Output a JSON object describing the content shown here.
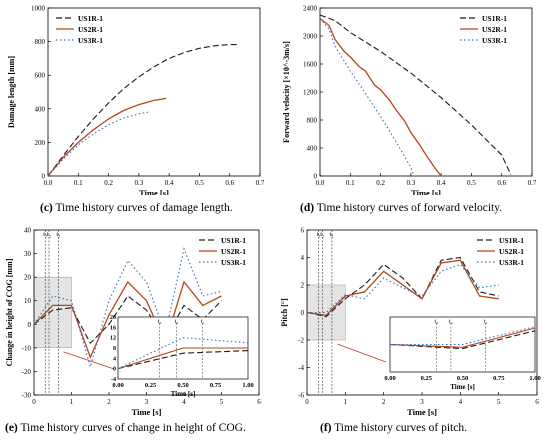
{
  "colors": {
    "US1R-1": "#1a1a1a",
    "US2R-1": "#b5451c",
    "US3R-1": "#2f6fbf",
    "shade": "#d8d8d8"
  },
  "captions": {
    "c": {
      "tag": "(c)",
      "text": "Time history curves of damage length."
    },
    "d": {
      "tag": "(d)",
      "text": "Time history curves of forward velocity."
    },
    "e": {
      "tag": "(e)",
      "text": "Time history curves of change in height of COG."
    },
    "f": {
      "tag": "(f)",
      "text": "Time history curves of pitch."
    }
  },
  "chart_data": [
    {
      "id": "c",
      "type": "line",
      "xlabel": "Time [s]",
      "ylabel": "Damage length [mm]",
      "xlim": [
        0,
        0.7
      ],
      "ylim": [
        0,
        1000
      ],
      "xticks": [
        "0.0",
        "0.1",
        "0.2",
        "0.3",
        "0.4",
        "0.5",
        "0.6",
        "0.7"
      ],
      "yticks": [
        "0",
        "200",
        "400",
        "600",
        "800",
        "1000"
      ],
      "legend": "top-left",
      "series": [
        {
          "name": "US1R-1",
          "style": "dash",
          "x": [
            0,
            0.05,
            0.1,
            0.15,
            0.2,
            0.25,
            0.3,
            0.35,
            0.4,
            0.45,
            0.5,
            0.55,
            0.6,
            0.63
          ],
          "y": [
            0,
            120,
            235,
            340,
            435,
            520,
            590,
            650,
            700,
            735,
            760,
            775,
            782,
            782
          ]
        },
        {
          "name": "US2R-1",
          "style": "solid",
          "x": [
            0,
            0.05,
            0.1,
            0.15,
            0.2,
            0.25,
            0.3,
            0.35,
            0.39
          ],
          "y": [
            0,
            110,
            200,
            275,
            340,
            390,
            425,
            450,
            462
          ]
        },
        {
          "name": "US3R-1",
          "style": "dot",
          "x": [
            0,
            0.05,
            0.1,
            0.15,
            0.2,
            0.25,
            0.3,
            0.33
          ],
          "y": [
            0,
            100,
            185,
            250,
            305,
            345,
            370,
            380
          ]
        }
      ]
    },
    {
      "id": "d",
      "type": "line",
      "xlabel": "Time [s]",
      "ylabel": "Forward velocity [×10^-3m/s]",
      "xlim": [
        0,
        0.7
      ],
      "ylim": [
        0,
        2400
      ],
      "xticks": [
        "0.00",
        "0.05",
        "0.10",
        "0.15",
        "0.20",
        "0.25",
        "0.30",
        "0.35",
        "0.40",
        "0.45",
        "0.50",
        "0.55",
        "0.60",
        "0.65",
        "0.70"
      ],
      "xticks_shown": [
        "0.0",
        "0.1",
        "0.2",
        "0.3",
        "0.4",
        "0.5",
        "0.6",
        "0.7"
      ],
      "yticks": [
        "0",
        "400",
        "800",
        "1200",
        "1600",
        "2000",
        "2400"
      ],
      "legend": "top-right",
      "series": [
        {
          "name": "US1R-1",
          "style": "dash",
          "x": [
            0,
            0.05,
            0.1,
            0.2,
            0.3,
            0.4,
            0.5,
            0.6,
            0.63
          ],
          "y": [
            2300,
            2220,
            2050,
            1780,
            1470,
            1120,
            730,
            300,
            20
          ]
        },
        {
          "name": "US2R-1",
          "style": "solid",
          "x": [
            0,
            0.03,
            0.05,
            0.08,
            0.1,
            0.13,
            0.15,
            0.18,
            0.2,
            0.23,
            0.25,
            0.28,
            0.3,
            0.33,
            0.35,
            0.38,
            0.4
          ],
          "y": [
            2250,
            2150,
            1950,
            1780,
            1700,
            1560,
            1500,
            1300,
            1230,
            1080,
            950,
            780,
            620,
            440,
            300,
            110,
            0
          ]
        },
        {
          "name": "US3R-1",
          "style": "dot",
          "x": [
            0,
            0.03,
            0.05,
            0.1,
            0.15,
            0.2,
            0.25,
            0.3,
            0.31
          ],
          "y": [
            2250,
            2100,
            1850,
            1500,
            1180,
            850,
            500,
            120,
            0
          ]
        }
      ]
    },
    {
      "id": "e",
      "type": "line",
      "xlabel": "Time [s]",
      "ylabel": "Change in height of COG [mm]",
      "xlim": [
        0,
        6
      ],
      "ylim": [
        -30,
        40
      ],
      "xticks": [
        "0",
        "1",
        "2",
        "3",
        "4",
        "5",
        "6"
      ],
      "yticks": [
        "-30",
        "-20",
        "-10",
        "0",
        "10",
        "20",
        "30",
        "40"
      ],
      "legend": "top-right",
      "markers": [
        "t₁",
        "t₂",
        "t₁"
      ],
      "inset": {
        "xlim": [
          0,
          1
        ],
        "ylim": [
          -4,
          20
        ],
        "xticks": [
          "0.00",
          "0.25",
          "0.50",
          "0.75",
          "1.00"
        ],
        "yticks": [
          "-4",
          "0",
          "4",
          "8",
          "12",
          "16",
          "20"
        ],
        "xlabel": "Time [s]",
        "markers": [
          "t₃",
          "t₂",
          "t₁"
        ]
      },
      "series": [
        {
          "name": "US1R-1",
          "style": "dash",
          "x": [
            0,
            0.5,
            1,
            1.5,
            2,
            2.5,
            3,
            3.5,
            4,
            4.5,
            5
          ],
          "y": [
            0,
            6,
            7,
            -8,
            0,
            12,
            6,
            -6,
            8,
            2,
            10
          ]
        },
        {
          "name": "US2R-1",
          "style": "solid",
          "x": [
            0,
            0.5,
            1,
            1.5,
            2,
            2.5,
            3,
            3.5,
            4,
            4.5,
            5
          ],
          "y": [
            0,
            8,
            8,
            -14,
            4,
            18,
            10,
            -8,
            18,
            8,
            12
          ]
        },
        {
          "name": "US3R-1",
          "style": "dot",
          "x": [
            0,
            0.5,
            1,
            1.5,
            2,
            2.5,
            3,
            3.5,
            4,
            4.5,
            5
          ],
          "y": [
            0,
            12,
            10,
            -18,
            10,
            27,
            18,
            -4,
            32,
            12,
            14
          ]
        }
      ]
    },
    {
      "id": "f",
      "type": "line",
      "xlabel": "Time [s]",
      "ylabel": "Pitch [°]",
      "xlim": [
        0,
        6
      ],
      "ylim": [
        -6,
        6
      ],
      "xticks": [
        "0",
        "1",
        "2",
        "3",
        "4",
        "5",
        "6"
      ],
      "yticks": [
        "-6",
        "-4",
        "-2",
        "0",
        "2",
        "4",
        "6"
      ],
      "legend": "top-right",
      "markers": [
        "t₁",
        "t₂",
        "t₁"
      ],
      "inset": {
        "xlim": [
          0,
          1
        ],
        "ylim": [
          -2,
          2
        ],
        "xticks": [
          "0.00",
          "0.25",
          "0.50",
          "0.75",
          "1.00"
        ],
        "xlabel": "Time [s]",
        "markers": [
          "t₃",
          "t₂",
          "t₁"
        ]
      },
      "series": [
        {
          "name": "US1R-1",
          "style": "dash",
          "x": [
            0,
            0.5,
            1,
            1.5,
            2,
            2.5,
            3,
            3.5,
            4,
            4.5,
            5
          ],
          "y": [
            0,
            -0.3,
            1,
            2,
            3.5,
            2.5,
            1,
            3.8,
            4,
            1.5,
            1.2
          ]
        },
        {
          "name": "US2R-1",
          "style": "solid",
          "x": [
            0,
            0.5,
            1,
            1.5,
            2,
            2.5,
            3,
            3.5,
            4,
            4.5,
            5
          ],
          "y": [
            0,
            -0.2,
            1.2,
            1.5,
            3,
            2,
            1,
            3.6,
            3.8,
            1.2,
            1
          ]
        },
        {
          "name": "US3R-1",
          "style": "dot",
          "x": [
            0,
            0.5,
            1,
            1.5,
            2,
            2.5,
            3,
            3.5,
            4,
            4.5,
            5
          ],
          "y": [
            0,
            0,
            1.3,
            1,
            2.5,
            1.8,
            1.2,
            3,
            3.5,
            1.8,
            2
          ]
        }
      ]
    }
  ]
}
